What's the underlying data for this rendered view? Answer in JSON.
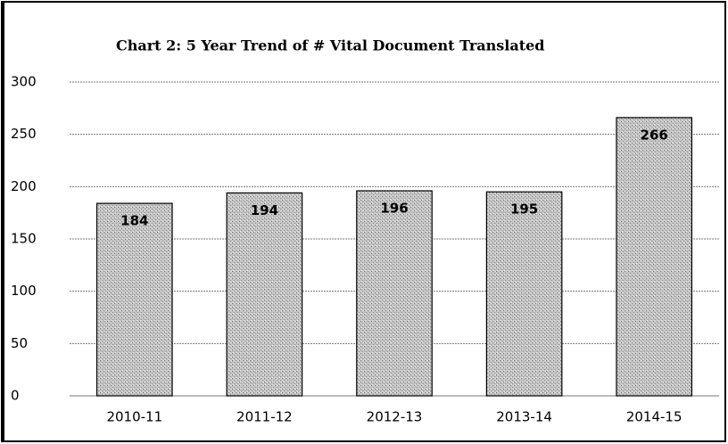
{
  "chart_data": {
    "type": "bar",
    "title": "Chart 2:  5 Year Trend of # Vital Document Translated",
    "categories": [
      "2010-11",
      "2011-12",
      "2012-13",
      "2013-14",
      "2014-15"
    ],
    "values": [
      184,
      194,
      196,
      195,
      266
    ],
    "color": "#c4c4c4",
    "ylim": [
      0,
      300
    ],
    "yticks": [
      0,
      50,
      100,
      150,
      200,
      250,
      300
    ],
    "grid": true
  }
}
